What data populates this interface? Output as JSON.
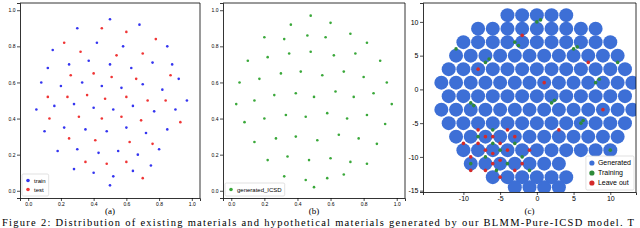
{
  "chart_data": [
    {
      "type": "scatter",
      "title": "(a)",
      "legend": "lower left",
      "grid": false,
      "xlim": [
        -0.05,
        1.05
      ],
      "ylim": [
        -0.04,
        1.04
      ],
      "xticks": [
        {
          "value": 0,
          "label": "0.0"
        },
        {
          "value": 0.2,
          "label": "0.2"
        },
        {
          "value": 0.4,
          "label": "0.4"
        },
        {
          "value": 0.6,
          "label": "0.6"
        },
        {
          "value": 0.8,
          "label": "0.8"
        },
        {
          "value": 1,
          "label": "1.0"
        }
      ],
      "yticks": [
        {
          "value": 0,
          "label": "0.0"
        },
        {
          "value": 0.2,
          "label": "0.2"
        },
        {
          "value": 0.4,
          "label": "0.4"
        },
        {
          "value": 0.6,
          "label": "0.6"
        },
        {
          "value": 0.8,
          "label": "0.8"
        },
        {
          "value": 1,
          "label": "1.0"
        }
      ],
      "series": [
        {
          "name": "train",
          "color": "#3535f0",
          "marker": "o",
          "x": [
            0.5,
            0.3,
            0.68,
            0.15,
            0.42,
            0.58,
            0.85,
            0.25,
            0.37,
            0.5,
            0.63,
            0.76,
            0.92,
            0.08,
            0.2,
            0.33,
            0.45,
            0.57,
            0.7,
            0.82,
            0.05,
            0.16,
            0.28,
            0.4,
            0.52,
            0.64,
            0.77,
            0.9,
            0.97,
            0.1,
            0.22,
            0.35,
            0.48,
            0.6,
            0.72,
            0.85,
            0.18,
            0.3,
            0.43,
            0.55,
            0.67,
            0.8,
            0.28,
            0.4,
            0.52,
            0.64,
            0.75,
            0.5,
            0.12,
            0.88
          ],
          "values": [
            0.95,
            0.9,
            0.92,
            0.78,
            0.82,
            0.8,
            0.8,
            0.7,
            0.72,
            0.7,
            0.68,
            0.71,
            0.62,
            0.6,
            0.58,
            0.6,
            0.58,
            0.57,
            0.59,
            0.56,
            0.45,
            0.47,
            0.48,
            0.46,
            0.45,
            0.47,
            0.44,
            0.45,
            0.5,
            0.33,
            0.35,
            0.34,
            0.33,
            0.35,
            0.32,
            0.34,
            0.22,
            0.23,
            0.21,
            0.22,
            0.2,
            0.23,
            0.12,
            0.1,
            0.08,
            0.11,
            0.14,
            0.03,
            0.68,
            0.7
          ]
        },
        {
          "name": "test",
          "color": "#f03535",
          "marker": "o",
          "x": [
            0.45,
            0.6,
            0.22,
            0.78,
            0.32,
            0.54,
            0.7,
            0.12,
            0.26,
            0.4,
            0.51,
            0.66,
            0.87,
            0.24,
            0.36,
            0.47,
            0.6,
            0.73,
            0.84,
            0.13,
            0.31,
            0.45,
            0.57,
            0.69,
            0.93,
            0.25,
            0.41,
            0.62,
            0.76,
            0.35,
            0.48,
            0.6,
            0.7
          ],
          "values": [
            0.9,
            0.88,
            0.82,
            0.84,
            0.77,
            0.75,
            0.76,
            0.52,
            0.64,
            0.65,
            0.63,
            0.62,
            0.64,
            0.52,
            0.53,
            0.51,
            0.52,
            0.5,
            0.5,
            0.4,
            0.41,
            0.4,
            0.41,
            0.39,
            0.38,
            0.29,
            0.28,
            0.27,
            0.26,
            0.16,
            0.15,
            0.16,
            0.07
          ]
        }
      ]
    },
    {
      "type": "scatter",
      "title": "(b)",
      "legend": "lower left",
      "grid": false,
      "xlim": [
        -0.05,
        1.05
      ],
      "ylim": [
        -0.04,
        1.04
      ],
      "xticks": [
        {
          "value": 0,
          "label": "0.0"
        },
        {
          "value": 0.2,
          "label": "0.2"
        },
        {
          "value": 0.4,
          "label": "0.4"
        },
        {
          "value": 0.6,
          "label": "0.6"
        },
        {
          "value": 0.8,
          "label": "0.8"
        },
        {
          "value": 1,
          "label": "1.0"
        }
      ],
      "yticks": [
        {
          "value": 0,
          "label": "0.0"
        },
        {
          "value": 0.2,
          "label": "0.2"
        },
        {
          "value": 0.4,
          "label": "0.4"
        },
        {
          "value": 0.6,
          "label": "0.6"
        },
        {
          "value": 0.8,
          "label": "0.8"
        },
        {
          "value": 1,
          "label": "1.0"
        }
      ],
      "series": [
        {
          "name": "generated_ICSD",
          "color": "#3aa83a",
          "marker": "o",
          "x": [
            0.48,
            0.36,
            0.6,
            0.2,
            0.32,
            0.46,
            0.57,
            0.72,
            0.82,
            0.1,
            0.22,
            0.35,
            0.48,
            0.62,
            0.75,
            0.9,
            0.05,
            0.17,
            0.3,
            0.42,
            0.55,
            0.68,
            0.8,
            0.94,
            0.03,
            0.14,
            0.26,
            0.39,
            0.5,
            0.63,
            0.74,
            0.86,
            0.97,
            0.08,
            0.2,
            0.33,
            0.45,
            0.58,
            0.7,
            0.82,
            0.93,
            0.14,
            0.27,
            0.39,
            0.52,
            0.65,
            0.77,
            0.88,
            0.22,
            0.34,
            0.47,
            0.6,
            0.72,
            0.82,
            0.32,
            0.45,
            0.58,
            0.68,
            0.5
          ],
          "values": [
            0.97,
            0.92,
            0.93,
            0.85,
            0.84,
            0.86,
            0.85,
            0.87,
            0.82,
            0.72,
            0.74,
            0.76,
            0.77,
            0.75,
            0.76,
            0.72,
            0.6,
            0.62,
            0.65,
            0.66,
            0.64,
            0.66,
            0.63,
            0.6,
            0.48,
            0.5,
            0.53,
            0.54,
            0.52,
            0.55,
            0.52,
            0.54,
            0.48,
            0.38,
            0.4,
            0.42,
            0.41,
            0.43,
            0.4,
            0.42,
            0.37,
            0.27,
            0.29,
            0.3,
            0.28,
            0.31,
            0.29,
            0.26,
            0.17,
            0.19,
            0.17,
            0.18,
            0.16,
            0.15,
            0.08,
            0.06,
            0.07,
            0.09,
            0.02
          ]
        }
      ]
    },
    {
      "type": "scatter",
      "title": "(c)",
      "legend": "lower right",
      "grid": false,
      "xlim": [
        -15.5,
        13.5
      ],
      "ylim": [
        -15.2,
        12.8
      ],
      "xticks": [
        -10,
        -5,
        0,
        5,
        10
      ],
      "yticks": [
        -15,
        -10,
        -5,
        0,
        5,
        10
      ],
      "series": [
        {
          "name": "Generated",
          "color": "#3d6fd6",
          "marker": "o",
          "x": [
            -4,
            -2,
            0,
            2,
            4,
            -8,
            -6,
            -4,
            -2,
            0,
            2,
            4,
            6,
            8,
            -10,
            -8,
            -6,
            -4,
            -2,
            0,
            2,
            4,
            6,
            8,
            10,
            -11,
            -9,
            -7,
            -5,
            -3,
            -1,
            1,
            3,
            5,
            7,
            9,
            11,
            -12,
            -10,
            -8,
            -6,
            -4,
            -2,
            0,
            2,
            4,
            6,
            8,
            10,
            12,
            -13,
            -11,
            -9,
            -7,
            -5,
            -3,
            -1,
            1,
            3,
            5,
            7,
            9,
            11,
            13,
            -12,
            -10,
            -8,
            -6,
            -4,
            -2,
            0,
            2,
            4,
            6,
            8,
            10,
            12,
            -13,
            -11,
            -9,
            -7,
            -5,
            -3,
            -1,
            1,
            3,
            5,
            7,
            9,
            11,
            13,
            -12,
            -10,
            -8,
            -6,
            -4,
            -2,
            0,
            2,
            4,
            6,
            8,
            10,
            12,
            -11,
            -9,
            -7,
            -5,
            -3,
            -1,
            1,
            3,
            5,
            7,
            9,
            11,
            -10,
            -8,
            -6,
            -4,
            -2,
            0,
            2,
            4,
            6,
            8,
            10,
            -9,
            -7,
            -5,
            -3,
            -1,
            1,
            3,
            -6,
            -4,
            -2,
            0,
            2,
            4,
            -3,
            -1,
            1,
            3
          ],
          "values": [
            11,
            11,
            11,
            11,
            11,
            9,
            9,
            9,
            9,
            9,
            9,
            9,
            9,
            9,
            7,
            7,
            7,
            7,
            7,
            7,
            7,
            7,
            7,
            7,
            7,
            5,
            5,
            5,
            5,
            5,
            5,
            5,
            5,
            5,
            5,
            5,
            5,
            3,
            3,
            3,
            3,
            3,
            3,
            3,
            3,
            3,
            3,
            3,
            3,
            3,
            1,
            1,
            1,
            1,
            1,
            1,
            1,
            1,
            1,
            1,
            1,
            1,
            1,
            1,
            -1,
            -1,
            -1,
            -1,
            -1,
            -1,
            -1,
            -1,
            -1,
            -1,
            -1,
            -1,
            -1,
            -3,
            -3,
            -3,
            -3,
            -3,
            -3,
            -3,
            -3,
            -3,
            -3,
            -3,
            -3,
            -3,
            -3,
            -5,
            -5,
            -5,
            -5,
            -5,
            -5,
            -5,
            -5,
            -5,
            -5,
            -5,
            -5,
            -5,
            -7,
            -7,
            -7,
            -7,
            -7,
            -7,
            -7,
            -7,
            -7,
            -7,
            -7,
            -7,
            -9,
            -9,
            -9,
            -9,
            -9,
            -9,
            -9,
            -9,
            -9,
            -9,
            -9,
            -11,
            -11,
            -11,
            -11,
            -11,
            -11,
            -11,
            -13,
            -13,
            -13,
            -13,
            -13,
            -13,
            -14.5,
            -14.5,
            -14.5,
            -14.5
          ]
        },
        {
          "name": "Training",
          "color": "#2e8b3a",
          "marker": "o",
          "x": [
            -7,
            -6.5,
            -3,
            -2.5,
            5,
            5.5,
            8,
            8.5,
            2,
            2.4,
            -9,
            -8.6,
            0,
            0.5,
            6,
            6.3,
            -1,
            10,
            -6,
            -5,
            -7,
            -4,
            -8,
            -3,
            -5.5,
            -9,
            -2,
            -6,
            11,
            -11
          ],
          "values": [
            4,
            4.5,
            7,
            6.5,
            6,
            6.3,
            1,
            1.5,
            -2,
            -1.6,
            -2,
            -2.4,
            10,
            10.3,
            -5,
            -4.6,
            -12,
            -9,
            -8,
            -9,
            -10,
            -11,
            -7,
            -8,
            -12,
            -11,
            -10,
            -6,
            4,
            6
          ]
        },
        {
          "name": "Leave out",
          "color": "#d42a2a",
          "marker": "o",
          "x": [
            -6,
            -5,
            -7,
            -4,
            -8,
            -3,
            -6,
            -9,
            -2,
            -5,
            -7,
            -4,
            -8,
            -10,
            -3,
            -6,
            -1,
            -9,
            -5,
            -7,
            3,
            7,
            -8,
            1,
            9,
            -2
          ],
          "values": [
            -7,
            -8,
            -9,
            -9,
            -8,
            -7,
            -11,
            -10,
            -11,
            -13,
            -12,
            -6,
            -6,
            -8,
            -12,
            -9.5,
            -9,
            -12,
            -10.5,
            -7,
            -6,
            4,
            3,
            1,
            -3,
            8
          ]
        }
      ]
    }
  ],
  "caption": "Figure 2: Distribution of existing materials and hypothetical materials generated by our BLMM-Pure-ICSD model. T"
}
